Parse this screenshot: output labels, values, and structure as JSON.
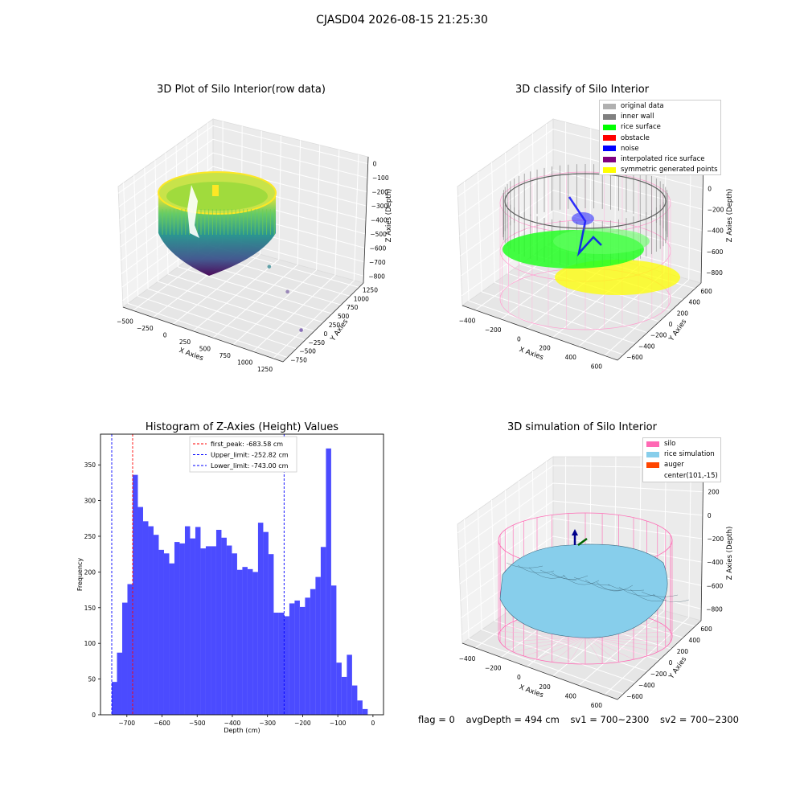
{
  "figure": {
    "title": "CJASD04 2026-08-15 21:25:30"
  },
  "colors": {
    "viridis": [
      "#440154",
      "#3b528b",
      "#21918c",
      "#5ec962",
      "#fde725"
    ],
    "hist_bar": "#4b4bff",
    "peak_line": "#ff0000",
    "limit_line": "#0000ff",
    "silo_wire": "#ff69b4",
    "rice": "#87ceeb"
  },
  "chart_data": [
    {
      "type": "scatter",
      "subtype": "3d",
      "title": "3D Plot of Silo Interior(row data)",
      "xlabel": "X Axies",
      "ylabel": "Y Axies",
      "zlabel": "Z Axies (Depth)",
      "x_ticks": [
        "−500",
        "−250",
        "0",
        "250",
        "500",
        "750",
        "1000",
        "1250"
      ],
      "y_ticks": [
        "−750",
        "−500",
        "−250",
        "0",
        "250",
        "500",
        "750",
        "1000",
        "1250"
      ],
      "z_ticks": [
        "0",
        "−100",
        "−200",
        "−300",
        "−400",
        "−500",
        "−600",
        "−700",
        "−800"
      ],
      "xlim": [
        -600,
        1350
      ],
      "ylim": [
        -750,
        1300
      ],
      "zlim": [
        -850,
        30
      ],
      "colormap": "viridis",
      "outlier_points": [
        {
          "x": 700,
          "y": 150,
          "z": -500
        },
        {
          "x": 950,
          "y": 100,
          "z": -620
        },
        {
          "x": 1250,
          "y": -150,
          "z": -780
        }
      ]
    },
    {
      "type": "scatter",
      "subtype": "3d",
      "title": "3D classify of Silo Interior",
      "xlabel": "X Axies",
      "ylabel": "Y Axies",
      "zlabel": "Z Axies (Depth)",
      "x_ticks": [
        "−400",
        "−200",
        "0",
        "200",
        "400",
        "600"
      ],
      "y_ticks": [
        "−600",
        "−400",
        "−200",
        "0",
        "200",
        "400",
        "600"
      ],
      "z_ticks": [
        "200",
        "0",
        "−200",
        "−400",
        "−600",
        "−800"
      ],
      "legend": [
        {
          "label": "original data",
          "color": "#b0b0b0"
        },
        {
          "label": "inner wall",
          "color": "#808080"
        },
        {
          "label": "rice surface",
          "color": "#00ff00"
        },
        {
          "label": "obstacle",
          "color": "#ff0000"
        },
        {
          "label": "noise",
          "color": "#0000ff"
        },
        {
          "label": "interpolated rice surface",
          "color": "#800080"
        },
        {
          "label": "symmetric generated points",
          "color": "#ffff00"
        }
      ],
      "legend_position": "top-right"
    },
    {
      "type": "bar",
      "title": "Histogram of Z-Axies (Height) Values",
      "xlabel": "Depth (cm)",
      "ylabel": "Frequency",
      "xlim": [
        -775,
        30
      ],
      "ylim": [
        0,
        393
      ],
      "x_ticks": [
        -700,
        -600,
        -500,
        -400,
        -300,
        -200,
        -100,
        0
      ],
      "y_ticks": [
        0,
        50,
        100,
        150,
        200,
        250,
        300,
        350
      ],
      "bin_start": -743,
      "bin_width": 14.86,
      "values": [
        46,
        87,
        157,
        183,
        336,
        291,
        271,
        264,
        252,
        231,
        226,
        212,
        242,
        240,
        264,
        247,
        263,
        233,
        236,
        236,
        259,
        248,
        237,
        226,
        203,
        207,
        204,
        200,
        269,
        256,
        225,
        143,
        143,
        138,
        156,
        160,
        151,
        164,
        176,
        193,
        235,
        373,
        181,
        73,
        53,
        84,
        41,
        20,
        8
      ],
      "vlines": [
        {
          "label": "first_peak: -683.58 cm",
          "x": -683.58,
          "color": "#ff0000"
        },
        {
          "label": "Upper_limit: -252.82 cm",
          "x": -252.82,
          "color": "#0000ff"
        },
        {
          "label": "Lower_limit: -743.00 cm",
          "x": -743.0,
          "color": "#0000ff"
        }
      ],
      "legend_position": "top-center",
      "grid": false
    },
    {
      "type": "area",
      "subtype": "3d-surface",
      "title": "3D simulation of Silo Interior",
      "xlabel": "X Axies",
      "ylabel": "Y Axies",
      "zlabel": "Z Axies (Depth)",
      "x_ticks": [
        "−400",
        "−200",
        "0",
        "200",
        "400",
        "600"
      ],
      "y_ticks": [
        "−600",
        "−400",
        "−200",
        "0",
        "200",
        "400",
        "600"
      ],
      "z_ticks": [
        "400",
        "200",
        "0",
        "−200",
        "−400",
        "−600",
        "−800"
      ],
      "legend": [
        {
          "label": "silo",
          "color": "#ff69b4"
        },
        {
          "label": "rice simulation",
          "color": "#87ceeb"
        },
        {
          "label": "auger",
          "color": "#ff4500"
        },
        {
          "label": "center(101,-15)",
          "color": ""
        }
      ],
      "legend_position": "top-right"
    }
  ],
  "status": {
    "flag": "flag = 0",
    "avg_depth": "avgDepth = 494 cm",
    "sv1": "sv1 = 700~2300",
    "sv2": "sv2 = 700~2300"
  }
}
